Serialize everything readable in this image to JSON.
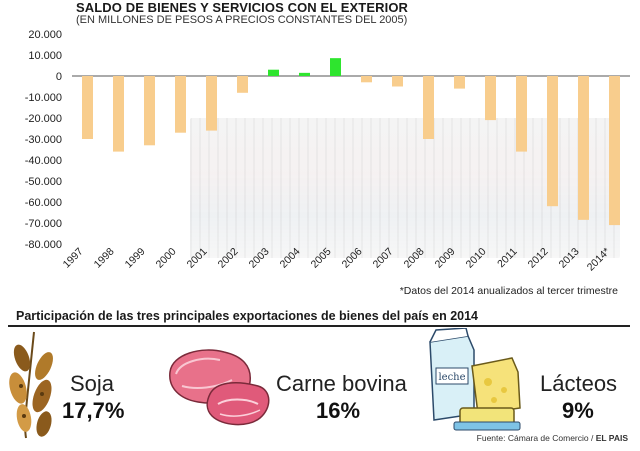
{
  "header": {
    "title": "SALDO DE BIENES Y SERVICIOS CON EL EXTERIOR",
    "subtitle": "(EN MILLONES DE PESOS A PRECIOS CONSTANTES DEL 2005)"
  },
  "chart_data": {
    "type": "bar",
    "categories": [
      "1997",
      "1998",
      "1999",
      "2000",
      "2001",
      "2002",
      "2003",
      "2004",
      "2005",
      "2006",
      "2007",
      "2008",
      "2009",
      "2010",
      "2011",
      "2012",
      "2013",
      "2014*"
    ],
    "values": [
      -30000,
      -36000,
      -33000,
      -27000,
      -26000,
      -8000,
      3000,
      1500,
      8500,
      -3000,
      -5000,
      -30000,
      -6000,
      -21000,
      -36000,
      -62000,
      -68500,
      -71000
    ],
    "y_ticks": [
      "20.000",
      "10.000",
      "0",
      "-10.000",
      "-20.000",
      "-30.000",
      "-40.000",
      "-50.000",
      "-60.000",
      "-70.000",
      "-80.000"
    ],
    "ylim": [
      -80000,
      20000
    ],
    "colors": {
      "negative": "#f8cd8d",
      "positive": "#2ee52e"
    },
    "footnote": "*Datos del 2014 anualizados al tercer trimestre"
  },
  "exports": {
    "title": "Participación de las tres principales exportaciones de bienes del país en 2014",
    "items": [
      {
        "label": "Soja",
        "value": "17,7%",
        "icon": "soy-pods-icon"
      },
      {
        "label": "Carne bovina",
        "value": "16%",
        "icon": "beef-icon"
      },
      {
        "label": "Lácteos",
        "value": "9%",
        "icon": "dairy-icon"
      }
    ],
    "milk_carton_text": "leche"
  },
  "source": {
    "prefix": "Fuente: Cámara de Comercio / ",
    "brand": "EL PAIS"
  }
}
